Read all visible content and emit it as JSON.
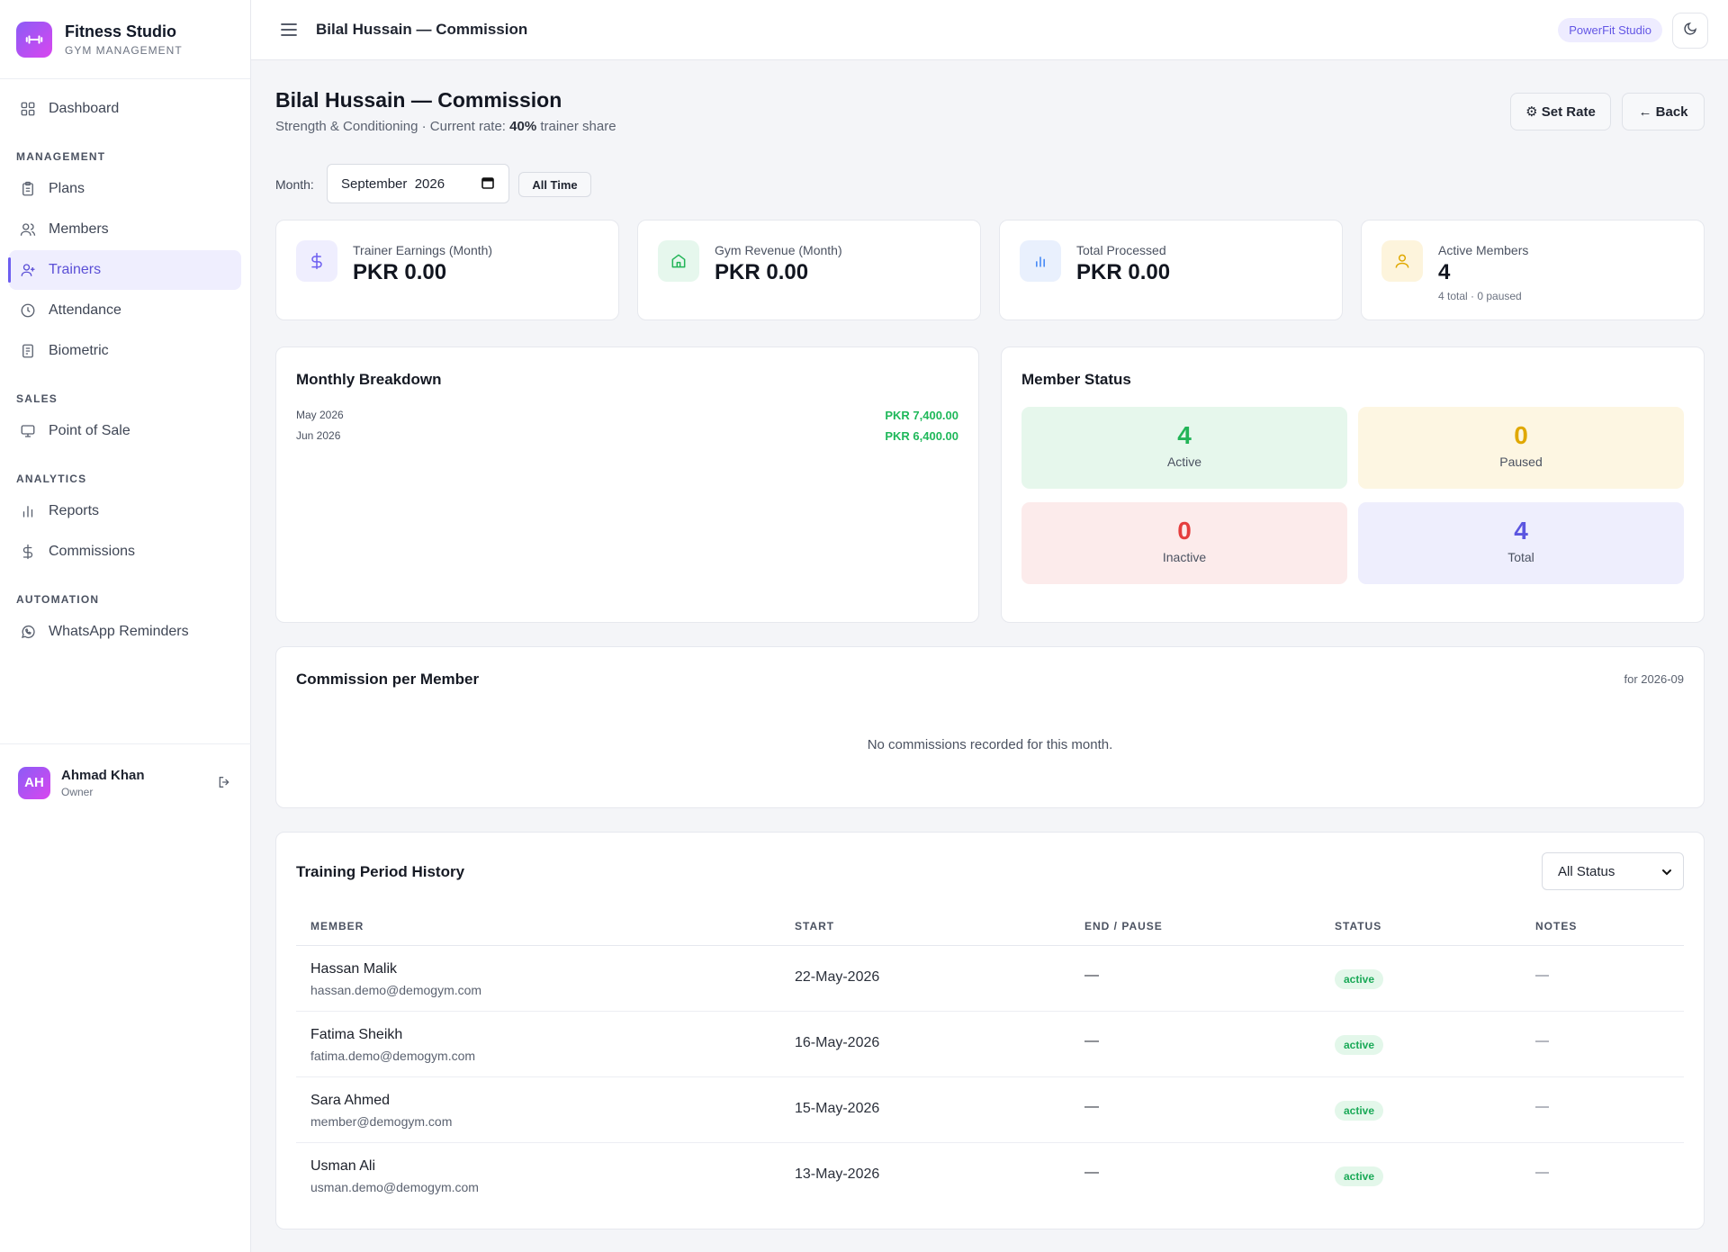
{
  "brand": {
    "title": "Fitness Studio",
    "subtitle": "GYM MANAGEMENT"
  },
  "nav": {
    "dashboard": "Dashboard",
    "sections": {
      "management": "MANAGEMENT",
      "sales": "SALES",
      "analytics": "ANALYTICS",
      "automation": "AUTOMATION"
    },
    "plans": "Plans",
    "members": "Members",
    "trainers": "Trainers",
    "attendance": "Attendance",
    "biometric": "Biometric",
    "pos": "Point of Sale",
    "reports": "Reports",
    "commissions": "Commissions",
    "whatsapp": "WhatsApp Reminders"
  },
  "user": {
    "initials": "AH",
    "name": "Ahmad Khan",
    "role": "Owner"
  },
  "topbar": {
    "title": "Bilal Hussain — Commission",
    "studio_badge": "PowerFit Studio"
  },
  "page": {
    "title": "Bilal Hussain — Commission",
    "subtitle_prefix": "Strength & Conditioning · Current rate: ",
    "rate": "40%",
    "subtitle_suffix": " trainer share",
    "set_rate_label": "⚙ Set Rate",
    "back_label": "← Back"
  },
  "filter": {
    "month_label": "Month:",
    "month_value": "September  2026",
    "all_time_label": "All Time"
  },
  "stats": [
    {
      "label": "Trainer Earnings (Month)",
      "value": "PKR 0.00",
      "note": ""
    },
    {
      "label": "Gym Revenue (Month)",
      "value": "PKR 0.00",
      "note": ""
    },
    {
      "label": "Total Processed",
      "value": "PKR 0.00",
      "note": ""
    },
    {
      "label": "Active Members",
      "value": "4",
      "note": "4 total · 0 paused"
    }
  ],
  "breakdown": {
    "title": "Monthly Breakdown",
    "rows": [
      {
        "month": "May 2026",
        "amount": "PKR 7,400.00"
      },
      {
        "month": "Jun 2026",
        "amount": "PKR 6,400.00"
      }
    ]
  },
  "member_status": {
    "title": "Member Status",
    "tiles": [
      {
        "value": "4",
        "label": "Active"
      },
      {
        "value": "0",
        "label": "Paused"
      },
      {
        "value": "0",
        "label": "Inactive"
      },
      {
        "value": "4",
        "label": "Total"
      }
    ]
  },
  "commission_per_member": {
    "title": "Commission per Member",
    "period": "for 2026-09",
    "empty_message": "No commissions recorded for this month."
  },
  "history": {
    "title": "Training Period History",
    "status_filter": "All Status",
    "columns": [
      "MEMBER",
      "START",
      "END / PAUSE",
      "STATUS",
      "NOTES"
    ],
    "rows": [
      {
        "name": "Hassan Malik",
        "email": "hassan.demo@demogym.com",
        "start": "22-May-2026",
        "end": "—",
        "status": "active",
        "notes": "—"
      },
      {
        "name": "Fatima Sheikh",
        "email": "fatima.demo@demogym.com",
        "start": "16-May-2026",
        "end": "—",
        "status": "active",
        "notes": "—"
      },
      {
        "name": "Sara Ahmed",
        "email": "member@demogym.com",
        "start": "15-May-2026",
        "end": "—",
        "status": "active",
        "notes": "—"
      },
      {
        "name": "Usman Ali",
        "email": "usman.demo@demogym.com",
        "start": "13-May-2026",
        "end": "—",
        "status": "active",
        "notes": "—"
      }
    ]
  },
  "colors": {
    "accent": "#6d5ef0",
    "active_green": "#22b457",
    "paused_amber": "#e0a800",
    "inactive_red": "#e53e3e",
    "total_indigo": "#5b55e0"
  },
  "icons": {
    "brand": "dumbbell-icon",
    "dashboard": "grid-icon",
    "plans": "clipboard-icon",
    "members": "users-icon",
    "trainers": "user-icon",
    "attendance": "clock-icon",
    "biometric": "fingerprint-doc-icon",
    "pos": "monitor-icon",
    "reports": "bar-chart-icon",
    "commissions": "dollar-icon",
    "whatsapp": "whatsapp-icon",
    "logout": "logout-icon",
    "menu": "hamburger-icon",
    "theme": "moon-icon"
  }
}
